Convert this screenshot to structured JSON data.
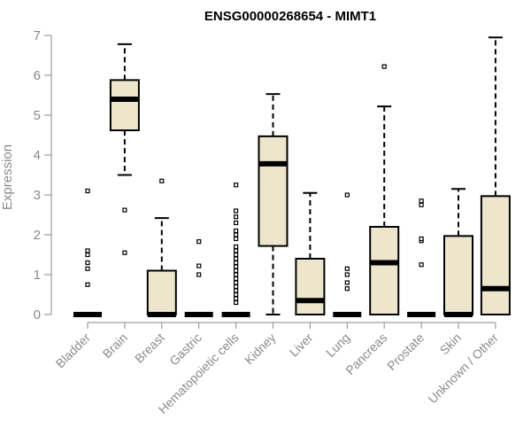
{
  "chart_data": {
    "type": "box",
    "title": "ENSG00000268654 - MIMT1",
    "xlabel": "",
    "ylabel": "Expression",
    "ylim": [
      0,
      7
    ],
    "yticks": [
      0,
      1,
      2,
      3,
      4,
      5,
      6,
      7
    ],
    "grid": false,
    "colors": {
      "box_fill": "#ede6cd",
      "stroke": "#000000",
      "axis": "#8a8a8a"
    },
    "categories": [
      "Bladder",
      "Brain",
      "Breast",
      "Gastric",
      "Hematopoietic cells",
      "Kidney",
      "Liver",
      "Lung",
      "Pancreas",
      "Prostate",
      "Skin",
      "Unknown / Other"
    ],
    "boxes": [
      {
        "category": "Bladder",
        "whisker_low": 0,
        "q1": 0,
        "median": 0,
        "q3": 0,
        "whisker_high": 0,
        "outliers": [
          0.75,
          1.15,
          1.3,
          1.5,
          1.6,
          3.1
        ]
      },
      {
        "category": "Brain",
        "whisker_low": 3.5,
        "q1": 4.62,
        "median": 5.4,
        "q3": 5.88,
        "whisker_high": 6.78,
        "outliers": [
          1.55,
          2.62
        ]
      },
      {
        "category": "Breast",
        "whisker_low": 0,
        "q1": 0,
        "median": 0,
        "q3": 1.1,
        "whisker_high": 2.42,
        "outliers": [
          3.35
        ]
      },
      {
        "category": "Gastric",
        "whisker_low": 0,
        "q1": 0,
        "median": 0,
        "q3": 0,
        "whisker_high": 0,
        "outliers": [
          1.0,
          1.22,
          1.83
        ]
      },
      {
        "category": "Hematopoietic cells",
        "whisker_low": 0,
        "q1": 0,
        "median": 0,
        "q3": 0,
        "whisker_high": 0,
        "outliers": [
          0.3,
          0.4,
          0.5,
          0.6,
          0.7,
          0.8,
          0.9,
          1.0,
          1.1,
          1.2,
          1.3,
          1.4,
          1.5,
          1.6,
          1.7,
          1.9,
          2.0,
          2.1,
          2.3,
          2.45,
          2.6,
          3.25
        ]
      },
      {
        "category": "Kidney",
        "whisker_low": 0,
        "q1": 1.72,
        "median": 3.78,
        "q3": 4.47,
        "whisker_high": 5.53,
        "outliers": []
      },
      {
        "category": "Liver",
        "whisker_low": 0,
        "q1": 0,
        "median": 0.35,
        "q3": 1.4,
        "whisker_high": 3.05,
        "outliers": []
      },
      {
        "category": "Lung",
        "whisker_low": 0,
        "q1": 0,
        "median": 0,
        "q3": 0,
        "whisker_high": 0,
        "outliers": [
          0.65,
          0.8,
          1.0,
          1.15,
          3.0
        ]
      },
      {
        "category": "Pancreas",
        "whisker_low": 0,
        "q1": 0,
        "median": 1.3,
        "q3": 2.2,
        "whisker_high": 5.22,
        "outliers": [
          6.22
        ]
      },
      {
        "category": "Prostate",
        "whisker_low": 0,
        "q1": 0,
        "median": 0,
        "q3": 0,
        "whisker_high": 0,
        "outliers": [
          1.25,
          1.85,
          1.9,
          2.75,
          2.85
        ]
      },
      {
        "category": "Skin",
        "whisker_low": 0,
        "q1": 0,
        "median": 0,
        "q3": 1.97,
        "whisker_high": 3.15,
        "outliers": []
      },
      {
        "category": "Unknown / Other",
        "whisker_low": 0,
        "q1": 0,
        "median": 0.65,
        "q3": 2.97,
        "whisker_high": 6.95,
        "outliers": []
      }
    ]
  }
}
